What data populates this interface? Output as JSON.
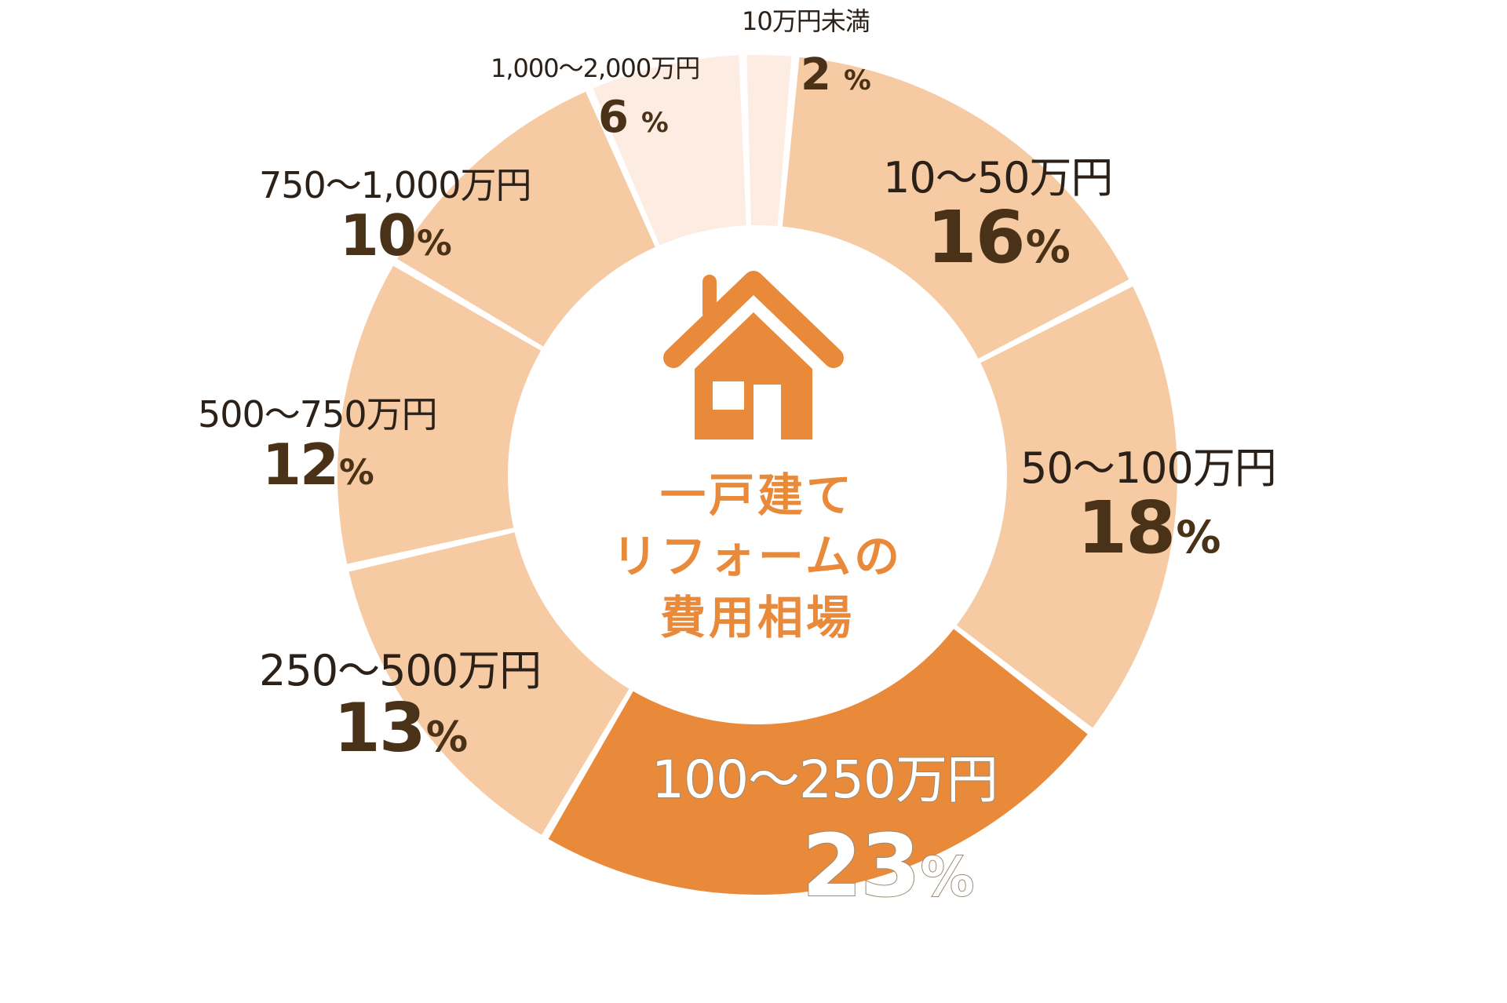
{
  "chart_data": {
    "type": "pie",
    "variant": "donut",
    "title": "一戸建てリフォームの費用相場",
    "title_lines": [
      "一戸建て",
      "リフォームの",
      "費用相場"
    ],
    "unit": "%",
    "categories": [
      "10万円未満",
      "10〜50万円",
      "50〜100万円",
      "100〜250万円",
      "250〜500万円",
      "500〜750万円",
      "750〜1,000万円",
      "1,000〜2,000万円"
    ],
    "values": [
      2,
      16,
      18,
      23,
      13,
      12,
      10,
      6
    ],
    "legend": "none (labels placed beside segments)",
    "highlighted_category": "100〜250万円",
    "center_icon": "house-icon",
    "colors": {
      "10万円未満": "#fcece2",
      "10〜50万円": "#f6cba3",
      "50〜100万円": "#f6cba3",
      "100〜250万円": "#e98a3a",
      "250〜500万円": "#f6cba3",
      "500〜750万円": "#f6cba3",
      "750〜1,000万円": "#f6cba3",
      "1,000〜2,000万円": "#fcece2"
    }
  },
  "segments": [
    {
      "range": "10万円未満",
      "pct": "2",
      "sign": "%"
    },
    {
      "range": "10〜50万円",
      "pct": "16",
      "sign": "%"
    },
    {
      "range": "50〜100万円",
      "pct": "18",
      "sign": "%"
    },
    {
      "range": "100〜250万円",
      "pct": "23",
      "sign": "%"
    },
    {
      "range": "250〜500万円",
      "pct": "13",
      "sign": "%"
    },
    {
      "range": "500〜750万円",
      "pct": "12",
      "sign": "%"
    },
    {
      "range": "750〜1,000万円",
      "pct": "10",
      "sign": "%"
    },
    {
      "range": "1,000〜2,000万円",
      "pct": "6",
      "sign": "%"
    }
  ],
  "center": {
    "line1": "一戸建て",
    "line2": "リフォームの",
    "line3": "費用相場"
  },
  "style": {
    "accent": "#e98a3a",
    "light": "#f6cba3",
    "pale": "#fcece2",
    "text_dark": "#4a3218"
  }
}
